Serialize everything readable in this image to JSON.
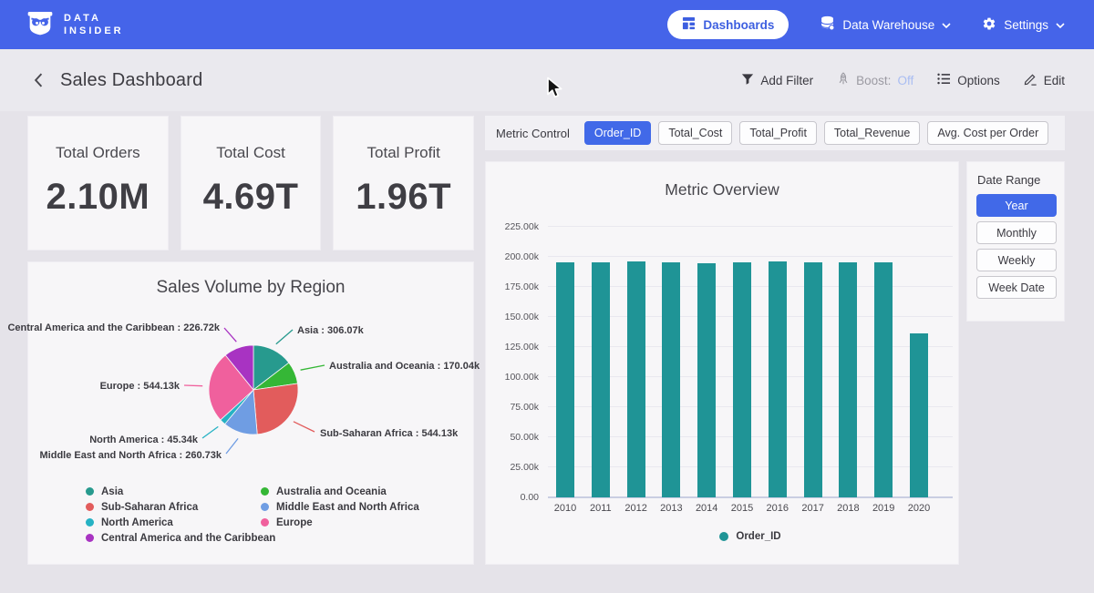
{
  "navbar": {
    "logo_line1": "DATA",
    "logo_line2": "INSIDER",
    "dashboards_label": "Dashboards",
    "data_warehouse_label": "Data Warehouse",
    "settings_label": "Settings"
  },
  "header": {
    "title": "Sales Dashboard",
    "add_filter_label": "Add Filter",
    "boost_label": "Boost:",
    "boost_state": "Off",
    "options_label": "Options",
    "edit_label": "Edit"
  },
  "kpis": [
    {
      "label": "Total Orders",
      "value": "2.10M"
    },
    {
      "label": "Total Cost",
      "value": "4.69T"
    },
    {
      "label": "Total Profit",
      "value": "1.96T"
    }
  ],
  "metric_control": {
    "label": "Metric Control",
    "options": [
      {
        "label": "Order_ID",
        "selected": true
      },
      {
        "label": "Total_Cost",
        "selected": false
      },
      {
        "label": "Total_Profit",
        "selected": false
      },
      {
        "label": "Total_Revenue",
        "selected": false
      },
      {
        "label": "Avg. Cost per Order",
        "selected": false
      }
    ]
  },
  "date_range": {
    "label": "Date Range",
    "options": [
      {
        "label": "Year",
        "selected": true
      },
      {
        "label": "Monthly",
        "selected": false
      },
      {
        "label": "Weekly",
        "selected": false
      },
      {
        "label": "Week Date",
        "selected": false
      }
    ]
  },
  "chart_data": [
    {
      "type": "pie",
      "title": "Sales Volume by Region",
      "slices": [
        {
          "label": "Asia",
          "value": 306070,
          "display": "306.07k",
          "color": "#279a8e"
        },
        {
          "label": "Australia and Oceania",
          "value": 170040,
          "display": "170.04k",
          "color": "#35b736"
        },
        {
          "label": "Sub-Saharan Africa",
          "value": 544130,
          "display": "544.13k",
          "color": "#e25c5c"
        },
        {
          "label": "Middle East and North Africa",
          "value": 260730,
          "display": "260.73k",
          "color": "#6f9de3"
        },
        {
          "label": "North America",
          "value": 45340,
          "display": "45.34k",
          "color": "#26b2c4"
        },
        {
          "label": "Europe",
          "value": 544130,
          "display": "544.13k",
          "color": "#f0609d"
        },
        {
          "label": "Central America and the Caribbean",
          "value": 226720,
          "display": "226.72k",
          "color": "#a833c2"
        }
      ],
      "legend_columns": [
        [
          0,
          2,
          4,
          6
        ],
        [
          1,
          3,
          5
        ]
      ],
      "legend_position": "bottom"
    },
    {
      "type": "bar",
      "title": "Metric Overview",
      "categories": [
        "2010",
        "2011",
        "2012",
        "2013",
        "2014",
        "2015",
        "2016",
        "2017",
        "2018",
        "2019",
        "2020"
      ],
      "series": [
        {
          "name": "Order_ID",
          "color": "#1f9496",
          "values": [
            195500,
            195300,
            196500,
            195200,
            195000,
            195300,
            196200,
            195400,
            195200,
            195600,
            136400
          ]
        }
      ],
      "ylim": [
        0,
        225000
      ],
      "ytick_values": [
        0,
        25000,
        50000,
        75000,
        100000,
        125000,
        150000,
        175000,
        200000,
        225000
      ],
      "ytick_labels": [
        "0.00",
        "25.00k",
        "50.00k",
        "75.00k",
        "100.00k",
        "125.00k",
        "150.00k",
        "175.00k",
        "200.00k",
        "225.00k"
      ],
      "grid": true,
      "legend_position": "bottom"
    }
  ]
}
